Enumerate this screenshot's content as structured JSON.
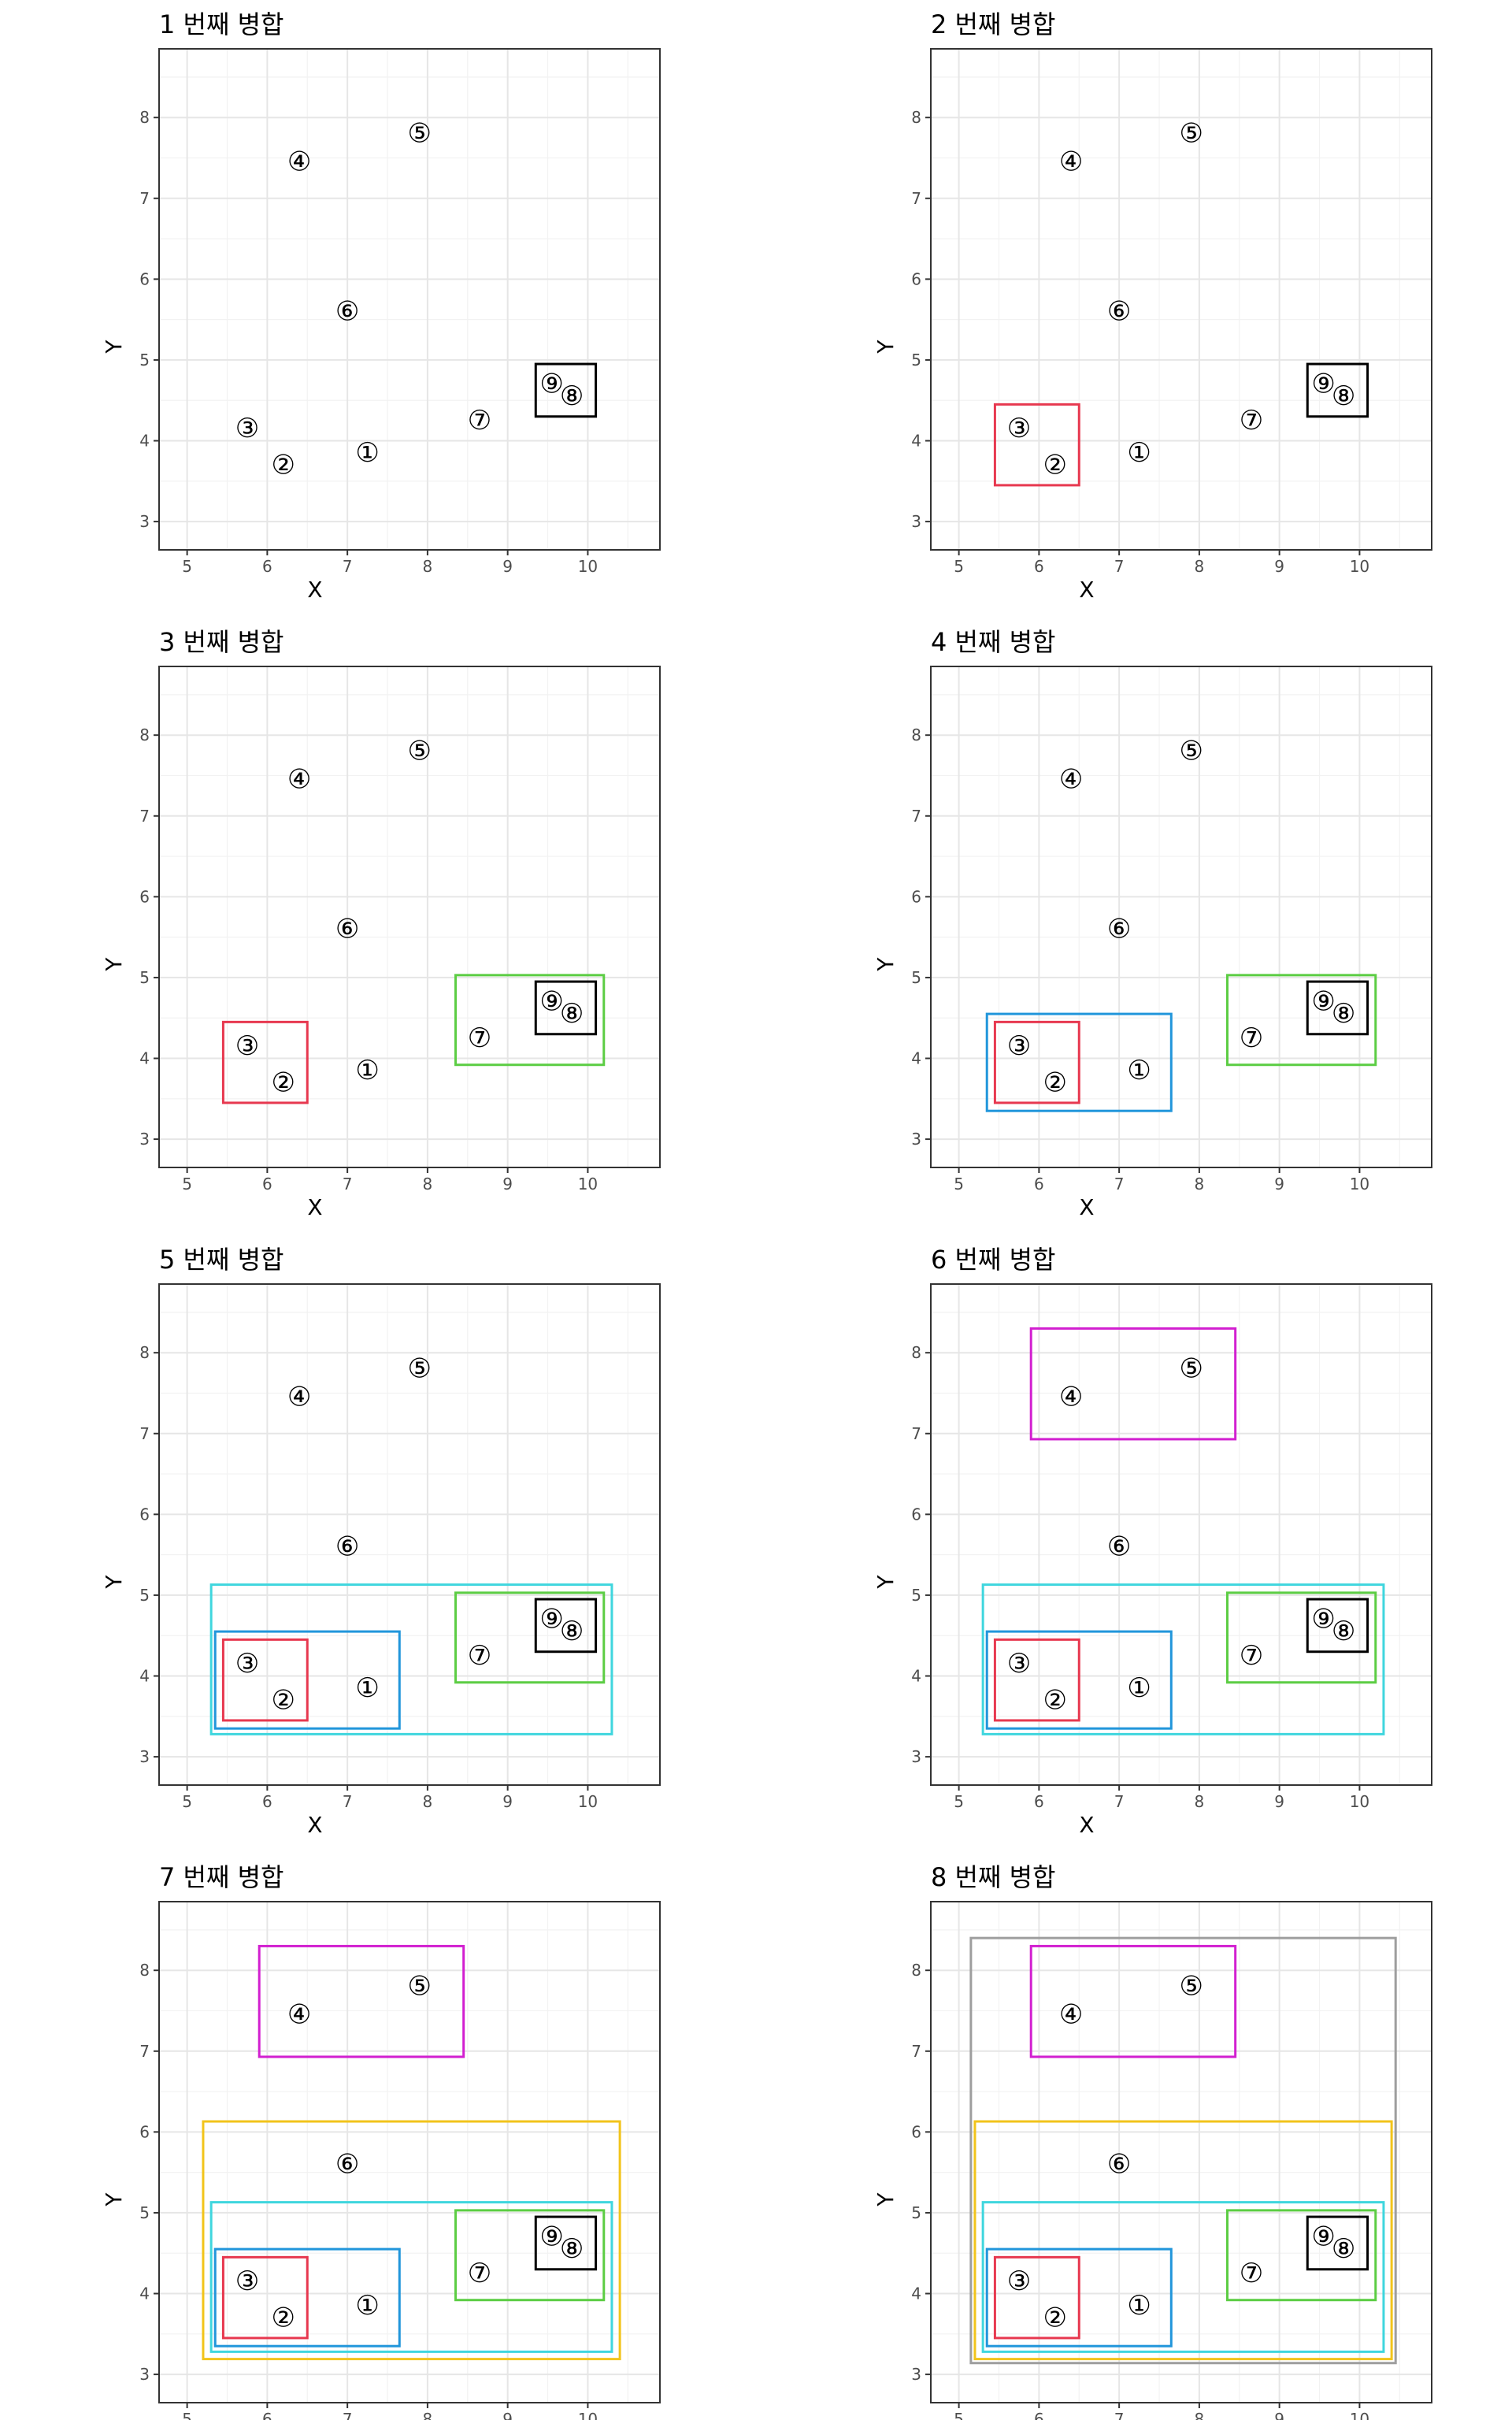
{
  "chart_data": {
    "type": "scatter",
    "xlabel": "X",
    "ylabel": "Y",
    "xlim": [
      4.65,
      10.9
    ],
    "ylim": [
      2.65,
      8.85
    ],
    "xticks": [
      5,
      6,
      7,
      8,
      9,
      10
    ],
    "yticks": [
      3,
      4,
      5,
      6,
      7,
      8
    ],
    "grid": true,
    "points": [
      {
        "label": "①",
        "x": 7.25,
        "y": 3.85
      },
      {
        "label": "②",
        "x": 6.2,
        "y": 3.7
      },
      {
        "label": "③",
        "x": 5.75,
        "y": 4.15
      },
      {
        "label": "④",
        "x": 6.4,
        "y": 7.45
      },
      {
        "label": "⑤",
        "x": 7.9,
        "y": 7.8
      },
      {
        "label": "⑥",
        "x": 7.0,
        "y": 5.6
      },
      {
        "label": "⑦",
        "x": 8.65,
        "y": 4.25
      },
      {
        "label": "⑧",
        "x": 9.8,
        "y": 4.55
      },
      {
        "label": "⑨",
        "x": 9.55,
        "y": 4.7
      }
    ],
    "clusters": [
      {
        "color": "#000000",
        "xmin": 9.35,
        "xmax": 10.1,
        "ymin": 4.3,
        "ymax": 4.95
      },
      {
        "color": "#e7384f",
        "xmin": 5.45,
        "xmax": 6.5,
        "ymin": 3.45,
        "ymax": 4.45
      },
      {
        "color": "#5ccd44",
        "xmin": 8.35,
        "xmax": 10.2,
        "ymin": 3.92,
        "ymax": 5.03
      },
      {
        "color": "#2196db",
        "xmin": 5.35,
        "xmax": 7.65,
        "ymin": 3.35,
        "ymax": 4.55
      },
      {
        "color": "#3fd6de",
        "xmin": 5.3,
        "xmax": 10.3,
        "ymin": 3.28,
        "ymax": 5.13
      },
      {
        "color": "#d21fd0",
        "xmin": 5.9,
        "xmax": 8.45,
        "ymin": 6.93,
        "ymax": 8.3
      },
      {
        "color": "#f2c41b",
        "xmin": 5.2,
        "xmax": 10.4,
        "ymin": 3.19,
        "ymax": 6.13
      },
      {
        "color": "#9e9e9e",
        "xmin": 5.15,
        "xmax": 10.45,
        "ymin": 3.14,
        "ymax": 8.4
      }
    ],
    "panels": [
      {
        "title": "1 번째 병합",
        "clusters_shown": 1
      },
      {
        "title": "2 번째 병합",
        "clusters_shown": 2
      },
      {
        "title": "3 번째 병합",
        "clusters_shown": 3
      },
      {
        "title": "4 번째 병합",
        "clusters_shown": 4
      },
      {
        "title": "5 번째 병합",
        "clusters_shown": 5
      },
      {
        "title": "6 번째 병합",
        "clusters_shown": 6
      },
      {
        "title": "7 번째 병합",
        "clusters_shown": 7
      },
      {
        "title": "8 번째 병합",
        "clusters_shown": 8
      }
    ]
  }
}
